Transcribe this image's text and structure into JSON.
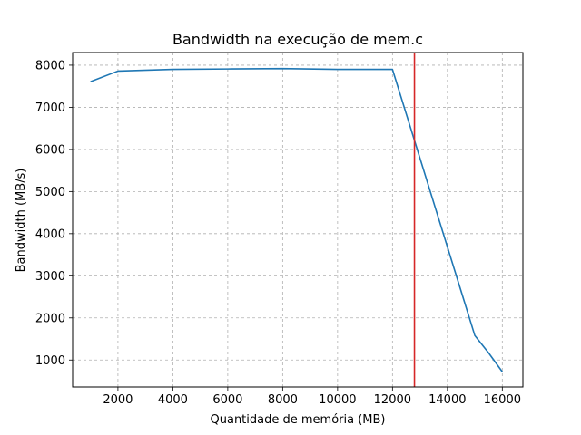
{
  "chart_data": {
    "type": "line",
    "title": "Bandwidth na execução de mem.c",
    "xlabel": "Quantidade de memória (MB)",
    "ylabel": "Bandwidth (MB/s)",
    "xlim": [
      350,
      16750
    ],
    "ylim": [
      360,
      8300
    ],
    "xticks": [
      2000,
      4000,
      6000,
      8000,
      10000,
      12000,
      14000,
      16000
    ],
    "yticks": [
      1000,
      2000,
      3000,
      4000,
      5000,
      6000,
      7000,
      8000
    ],
    "grid": true,
    "series": [
      {
        "x": [
          1000,
          2000,
          4000,
          6000,
          8000,
          10000,
          12000,
          15000,
          15500,
          16000
        ],
        "y": [
          7610,
          7860,
          7900,
          7910,
          7920,
          7900,
          7900,
          1580,
          1170,
          720
        ],
        "color": "#1f77b4"
      }
    ],
    "vline": {
      "x": 12800,
      "color": "#d62728"
    }
  }
}
